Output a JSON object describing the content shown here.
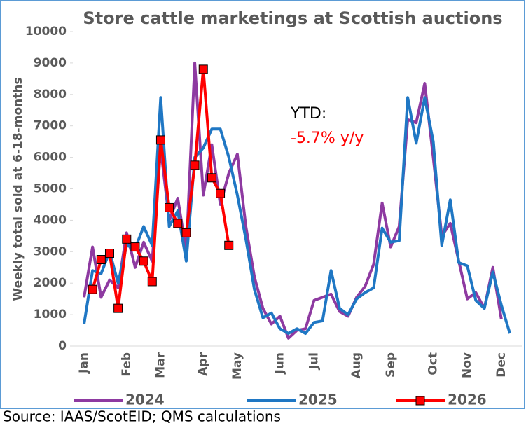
{
  "chart_data": {
    "type": "line",
    "title": "Store cattle marketings at Scottish auctions",
    "y_label": "Weekly total sold at 6-18-months",
    "annotation": "YTD:",
    "annotation_value": "-5.7% y/y",
    "source": "Source: IAAS/ScotEID; QMS calculations",
    "categories": [
      "Jan",
      null,
      null,
      null,
      null,
      "Feb",
      null,
      null,
      null,
      "Mar",
      null,
      null,
      null,
      null,
      "Apr",
      null,
      null,
      null,
      "May",
      null,
      null,
      null,
      null,
      "Jun",
      null,
      null,
      null,
      "Jul",
      null,
      null,
      null,
      null,
      "Aug",
      null,
      null,
      null,
      "Sep",
      null,
      null,
      null,
      null,
      "Oct",
      null,
      null,
      null,
      "Nov",
      null,
      null,
      null,
      "Dec",
      null,
      null
    ],
    "series": [
      {
        "name": "2024",
        "color": "#8e3aa1",
        "values": [
          1550,
          3150,
          1550,
          2100,
          1850,
          3600,
          2500,
          3300,
          2700,
          6300,
          4000,
          4700,
          3000,
          9000,
          4800,
          6400,
          4500,
          5500,
          6100,
          3800,
          2200,
          1200,
          700,
          950,
          250,
          500,
          550,
          1450,
          1550,
          1650,
          1100,
          950,
          1550,
          1900,
          2600,
          4550,
          3150,
          3800,
          7200,
          7100,
          8350,
          6000,
          3500,
          3900,
          2700,
          1500,
          1700,
          1200,
          2500,
          850,
          null,
          null
        ]
      },
      {
        "name": "2025",
        "color": "#1f77c4",
        "values": [
          700,
          2400,
          2300,
          3000,
          2000,
          3200,
          3100,
          3800,
          3200,
          7900,
          3800,
          4300,
          2700,
          6000,
          6300,
          6900,
          6900,
          6000,
          4800,
          3400,
          1800,
          900,
          1050,
          550,
          400,
          550,
          400,
          750,
          800,
          2400,
          1200,
          1000,
          1500,
          1700,
          1850,
          3750,
          3300,
          3350,
          7900,
          6450,
          7900,
          6500,
          3200,
          4650,
          2650,
          2550,
          1450,
          1200,
          2350,
          1300,
          400,
          null
        ]
      },
      {
        "name": "2026",
        "color": "#ff0000",
        "marker": "square",
        "values": [
          null,
          1800,
          2750,
          2950,
          1200,
          3400,
          3150,
          2700,
          2050,
          6550,
          4400,
          3900,
          3600,
          5750,
          8800,
          5350,
          4850,
          3200,
          null,
          null,
          null,
          null,
          null,
          null,
          null,
          null,
          null,
          null,
          null,
          null,
          null,
          null,
          null,
          null,
          null,
          null,
          null,
          null,
          null,
          null,
          null,
          null,
          null,
          null,
          null,
          null,
          null,
          null,
          null,
          null,
          null,
          null
        ]
      }
    ],
    "ylim": [
      0,
      10000
    ],
    "yticks": [
      0,
      1000,
      2000,
      3000,
      4000,
      5000,
      6000,
      7000,
      8000,
      9000,
      10000
    ],
    "legend": "bottom"
  }
}
